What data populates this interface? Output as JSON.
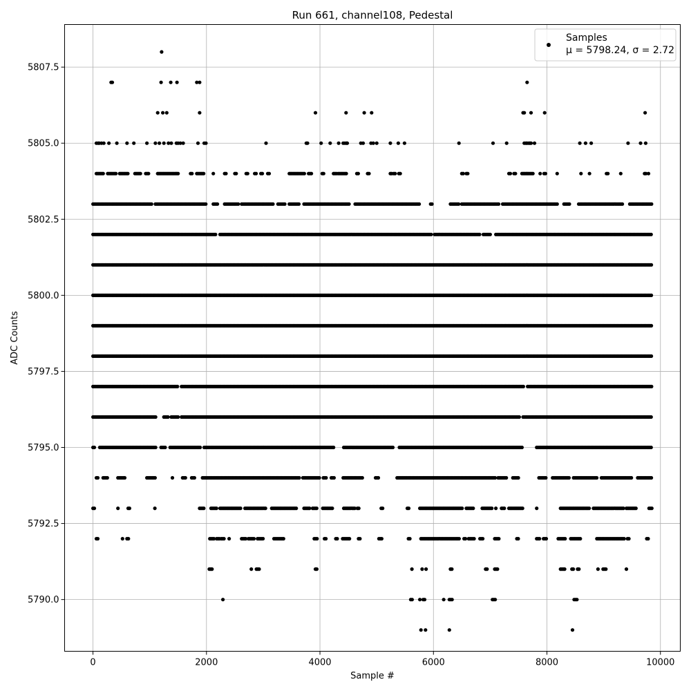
{
  "chart_data": {
    "type": "scatter",
    "title": "Run 661, channel108, Pedestal",
    "xlabel": "Sample #",
    "ylabel": "ADC Counts",
    "xlim": [
      -500,
      10350
    ],
    "ylim": [
      5788.3,
      5808.9
    ],
    "xticks": [
      0,
      2000,
      4000,
      6000,
      8000,
      10000
    ],
    "xtick_labels": [
      "0",
      "2000",
      "4000",
      "6000",
      "8000",
      "10000"
    ],
    "yticks": [
      5790.0,
      5792.5,
      5795.0,
      5797.5,
      5800.0,
      5802.5,
      5805.0,
      5807.5
    ],
    "ytick_labels": [
      "5790.0",
      "5792.5",
      "5795.0",
      "5797.5",
      "5800.0",
      "5802.5",
      "5805.0",
      "5807.5"
    ],
    "grid": true,
    "legend_position": "top-right",
    "legend": {
      "series_label": "Samples",
      "stats_label": "μ = 5798.24, σ = 2.72"
    },
    "point_color": "#000000",
    "series": [
      {
        "name": "Samples",
        "x_range": [
          0,
          9850
        ],
        "mean": 5798.24,
        "std": 2.72,
        "levels": [
          {
            "y": 5808,
            "x": [
              1210
            ]
          },
          {
            "y": 5807,
            "x": [
              320,
              340,
              1200,
              1370,
              1480,
              1830,
              1880,
              7650
            ]
          },
          {
            "y": 5806,
            "x": [
              1140,
              1230,
              1300,
              1880,
              3920,
              4460,
              4780,
              4910,
              7580,
              7600,
              7720,
              7960,
              9730
            ]
          },
          {
            "y": 5805,
            "x": [
              60,
              90,
              110,
              150,
              190,
              280,
              420,
              600,
              720,
              950,
              1100,
              1170,
              1250,
              1330,
              1380,
              1470,
              1500,
              1540,
              1590,
              1850,
              1960,
              1990,
              3050,
              3760,
              3780,
              4020,
              4180,
              4330,
              4410,
              4440,
              4470,
              4480,
              4720,
              4760,
              4900,
              4940,
              5000,
              5240,
              5380,
              5490,
              6450,
              7050,
              7290,
              7600,
              7630,
              7650,
              7680,
              7700,
              7720,
              7780,
              8580,
              8680,
              8780,
              9430,
              9650,
              9740
            ]
          }
        ],
        "bands": [
          {
            "y": 5804,
            "ranges": [
              [
                60,
                180
              ],
              [
                260,
                420
              ],
              [
                470,
                620
              ],
              [
                740,
                840
              ],
              [
                930,
                1000
              ],
              [
                1140,
                1510
              ],
              [
                1720,
                1760
              ],
              [
                1830,
                1960
              ],
              [
                2120,
                2140
              ],
              [
                2320,
                2350
              ],
              [
                2500,
                2530
              ],
              [
                2700,
                2730
              ],
              [
                2850,
                2880
              ],
              [
                2960,
                2990
              ],
              [
                3080,
                3110
              ],
              [
                3460,
                3740
              ],
              [
                3800,
                3850
              ],
              [
                4040,
                4080
              ],
              [
                4240,
                4290
              ],
              [
                4320,
                4480
              ],
              [
                4650,
                4680
              ],
              [
                4840,
                4880
              ],
              [
                5240,
                5270
              ],
              [
                5300,
                5330
              ],
              [
                5390,
                5420
              ],
              [
                6500,
                6530
              ],
              [
                6580,
                6610
              ],
              [
                7330,
                7360
              ],
              [
                7420,
                7450
              ],
              [
                7560,
                7760
              ],
              [
                7880,
                7900
              ],
              [
                7950,
                7980
              ],
              [
                8180,
                8200
              ],
              [
                8600,
                8620
              ],
              [
                8750,
                8770
              ],
              [
                9050,
                9080
              ],
              [
                9300,
                9320
              ],
              [
                9720,
                9750
              ],
              [
                9790,
                9810
              ]
            ]
          },
          {
            "y": 5803,
            "ranges": [
              [
                0,
                1040
              ],
              [
                1100,
                1990
              ],
              [
                2120,
                2200
              ],
              [
                2320,
                2560
              ],
              [
                2620,
                3180
              ],
              [
                3260,
                3380
              ],
              [
                3460,
                3640
              ],
              [
                3720,
                4520
              ],
              [
                4620,
                5760
              ],
              [
                5950,
                5980
              ],
              [
                6300,
                6450
              ],
              [
                6500,
                7160
              ],
              [
                7220,
                8200
              ],
              [
                8300,
                8400
              ],
              [
                8560,
                9340
              ],
              [
                9460,
                9850
              ]
            ]
          },
          {
            "y": 5802,
            "ranges": [
              [
                0,
                2160
              ],
              [
                2240,
                5960
              ],
              [
                6020,
                6820
              ],
              [
                6880,
                7000
              ],
              [
                7100,
                9850
              ]
            ]
          },
          {
            "y": 5801,
            "ranges": [
              [
                0,
                9850
              ]
            ]
          },
          {
            "y": 5800,
            "ranges": [
              [
                0,
                9850
              ]
            ]
          },
          {
            "y": 5799,
            "ranges": [
              [
                0,
                9850
              ]
            ]
          },
          {
            "y": 5798,
            "ranges": [
              [
                0,
                9850
              ]
            ]
          },
          {
            "y": 5797,
            "ranges": [
              [
                0,
                1500
              ],
              [
                1560,
                7600
              ],
              [
                7660,
                9850
              ]
            ]
          },
          {
            "y": 5796,
            "ranges": [
              [
                0,
                1120
              ],
              [
                1250,
                1330
              ],
              [
                1380,
                1500
              ],
              [
                1560,
                7520
              ],
              [
                7580,
                9850
              ]
            ]
          },
          {
            "y": 5795,
            "ranges": [
              [
                0,
                40
              ],
              [
                120,
                1120
              ],
              [
                1200,
                1280
              ],
              [
                1360,
                1900
              ],
              [
                1960,
                4250
              ],
              [
                4420,
                5300
              ],
              [
                5400,
                7560
              ],
              [
                7820,
                9850
              ]
            ]
          },
          {
            "y": 5794,
            "ranges": [
              [
                60,
                100
              ],
              [
                180,
                260
              ],
              [
                440,
                560
              ],
              [
                950,
                1110
              ],
              [
                1400,
                1420
              ],
              [
                1580,
                1650
              ],
              [
                1740,
                1800
              ],
              [
                1930,
                3650
              ],
              [
                3700,
                4000
              ],
              [
                4060,
                4120
              ],
              [
                4200,
                4250
              ],
              [
                4410,
                4760
              ],
              [
                4980,
                5050
              ],
              [
                5360,
                7100
              ],
              [
                7140,
                7300
              ],
              [
                7400,
                7500
              ],
              [
                7860,
                8000
              ],
              [
                8100,
                8400
              ],
              [
                8470,
                8900
              ],
              [
                8960,
                9500
              ],
              [
                9600,
                9850
              ]
            ]
          },
          {
            "y": 5793,
            "ranges": [
              [
                0,
                30
              ],
              [
                440,
                460
              ],
              [
                620,
                660
              ],
              [
                1090,
                1110
              ],
              [
                1880,
                1960
              ],
              [
                2080,
                2180
              ],
              [
                2240,
                2620
              ],
              [
                2680,
                3050
              ],
              [
                3150,
                3600
              ],
              [
                3720,
                3820
              ],
              [
                3870,
                3950
              ],
              [
                4050,
                4240
              ],
              [
                4420,
                4620
              ],
              [
                4660,
                4700
              ],
              [
                5080,
                5120
              ],
              [
                5540,
                5570
              ],
              [
                5760,
                6520
              ],
              [
                6580,
                6720
              ],
              [
                6860,
                7050
              ],
              [
                7100,
                7120
              ],
              [
                7200,
                7250
              ],
              [
                7330,
                7580
              ],
              [
                7820,
                7840
              ],
              [
                8240,
                8750
              ],
              [
                8820,
                9360
              ],
              [
                9400,
                9580
              ],
              [
                9800,
                9850
              ]
            ]
          },
          {
            "y": 5792,
            "ranges": [
              [
                60,
                100
              ],
              [
                520,
                540
              ],
              [
                600,
                630
              ],
              [
                2060,
                2140
              ],
              [
                2180,
                2240
              ],
              [
                2260,
                2320
              ],
              [
                2400,
                2420
              ],
              [
                2620,
                2700
              ],
              [
                2740,
                2840
              ],
              [
                2900,
                3000
              ],
              [
                3190,
                3380
              ],
              [
                3900,
                3950
              ],
              [
                4080,
                4120
              ],
              [
                4280,
                4320
              ],
              [
                4400,
                4520
              ],
              [
                4680,
                4720
              ],
              [
                5040,
                5100
              ],
              [
                5560,
                5600
              ],
              [
                5780,
                6460
              ],
              [
                6540,
                6580
              ],
              [
                6620,
                6730
              ],
              [
                6820,
                6880
              ],
              [
                7080,
                7160
              ],
              [
                7470,
                7510
              ],
              [
                7820,
                7880
              ],
              [
                7940,
                8000
              ],
              [
                8200,
                8320
              ],
              [
                8420,
                8600
              ],
              [
                8880,
                9380
              ],
              [
                9420,
                9450
              ],
              [
                9760,
                9800
              ]
            ]
          },
          {
            "y": 5791,
            "ranges": [
              [
                2050,
                2100
              ],
              [
                2790,
                2810
              ],
              [
                2880,
                2940
              ],
              [
                3920,
                3950
              ],
              [
                5620,
                5640
              ],
              [
                5800,
                5820
              ],
              [
                5870,
                5890
              ],
              [
                6300,
                6340
              ],
              [
                6920,
                6960
              ],
              [
                7080,
                7140
              ],
              [
                8240,
                8320
              ],
              [
                8440,
                8480
              ],
              [
                8540,
                8580
              ],
              [
                8900,
                8920
              ],
              [
                8990,
                9060
              ],
              [
                9400,
                9420
              ]
            ]
          },
          {
            "y": 5790,
            "ranges": [
              [
                2290,
                2310
              ],
              [
                5600,
                5640
              ],
              [
                5760,
                5780
              ],
              [
                5820,
                5860
              ],
              [
                6180,
                6200
              ],
              [
                6280,
                6330
              ],
              [
                7040,
                7110
              ],
              [
                8480,
                8540
              ]
            ]
          },
          {
            "y": 5789,
            "x": [
              5780,
              5860,
              6280,
              8450
            ]
          }
        ]
      }
    ]
  }
}
